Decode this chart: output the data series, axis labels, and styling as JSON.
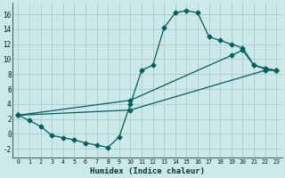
{
  "xlabel": "Humidex (Indice chaleur)",
  "bg_color": "#cce8e8",
  "line_color": "#006060",
  "grid_major_color": "#aacccc",
  "grid_minor_color": "#c0d8d8",
  "xlim": [
    -0.5,
    23.5
  ],
  "ylim": [
    -3.2,
    17.5
  ],
  "xticks": [
    0,
    1,
    2,
    3,
    4,
    5,
    6,
    7,
    8,
    9,
    10,
    11,
    12,
    13,
    14,
    15,
    16,
    17,
    18,
    19,
    20,
    21,
    22,
    23
  ],
  "yticks": [
    -2,
    0,
    2,
    4,
    6,
    8,
    10,
    12,
    14,
    16
  ],
  "line1_x": [
    0,
    1,
    2,
    3,
    4,
    5,
    6,
    7,
    8,
    9,
    10,
    11,
    12,
    13,
    14,
    15,
    16,
    17,
    18,
    19,
    20,
    21,
    22,
    23
  ],
  "line1_y": [
    2.5,
    1.8,
    1.0,
    -0.2,
    -0.5,
    -0.8,
    -1.2,
    -1.5,
    -1.8,
    -0.4,
    4.0,
    8.5,
    9.2,
    14.2,
    16.2,
    16.5,
    16.2,
    13.0,
    12.5,
    12.0,
    11.5,
    9.2,
    8.7,
    8.5
  ],
  "line2_x": [
    0,
    10,
    19,
    20,
    21,
    22,
    23
  ],
  "line2_y": [
    2.5,
    4.5,
    10.5,
    11.2,
    9.2,
    8.8,
    8.5
  ],
  "line3_x": [
    0,
    10,
    22,
    23
  ],
  "line3_y": [
    2.5,
    3.2,
    8.5,
    8.5
  ]
}
